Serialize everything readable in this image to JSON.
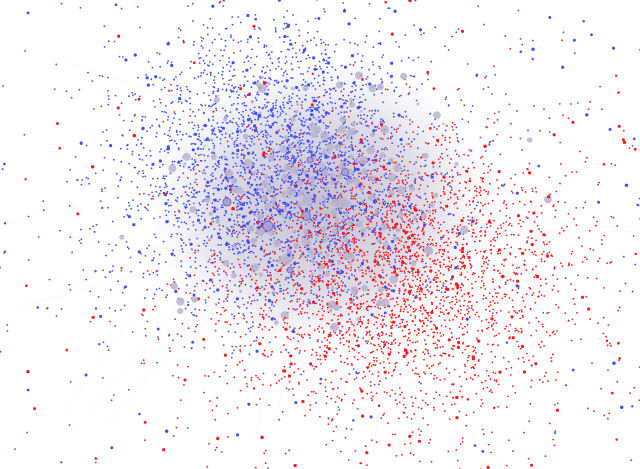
{
  "graph": {
    "type": "network",
    "background": "#ffffff",
    "communities": [
      {
        "color": "#3f51ff"
      },
      {
        "color": "#ff1a1a"
      }
    ],
    "hub_color": "#b9b4cc",
    "edge_color": "#c8c8d2"
  }
}
